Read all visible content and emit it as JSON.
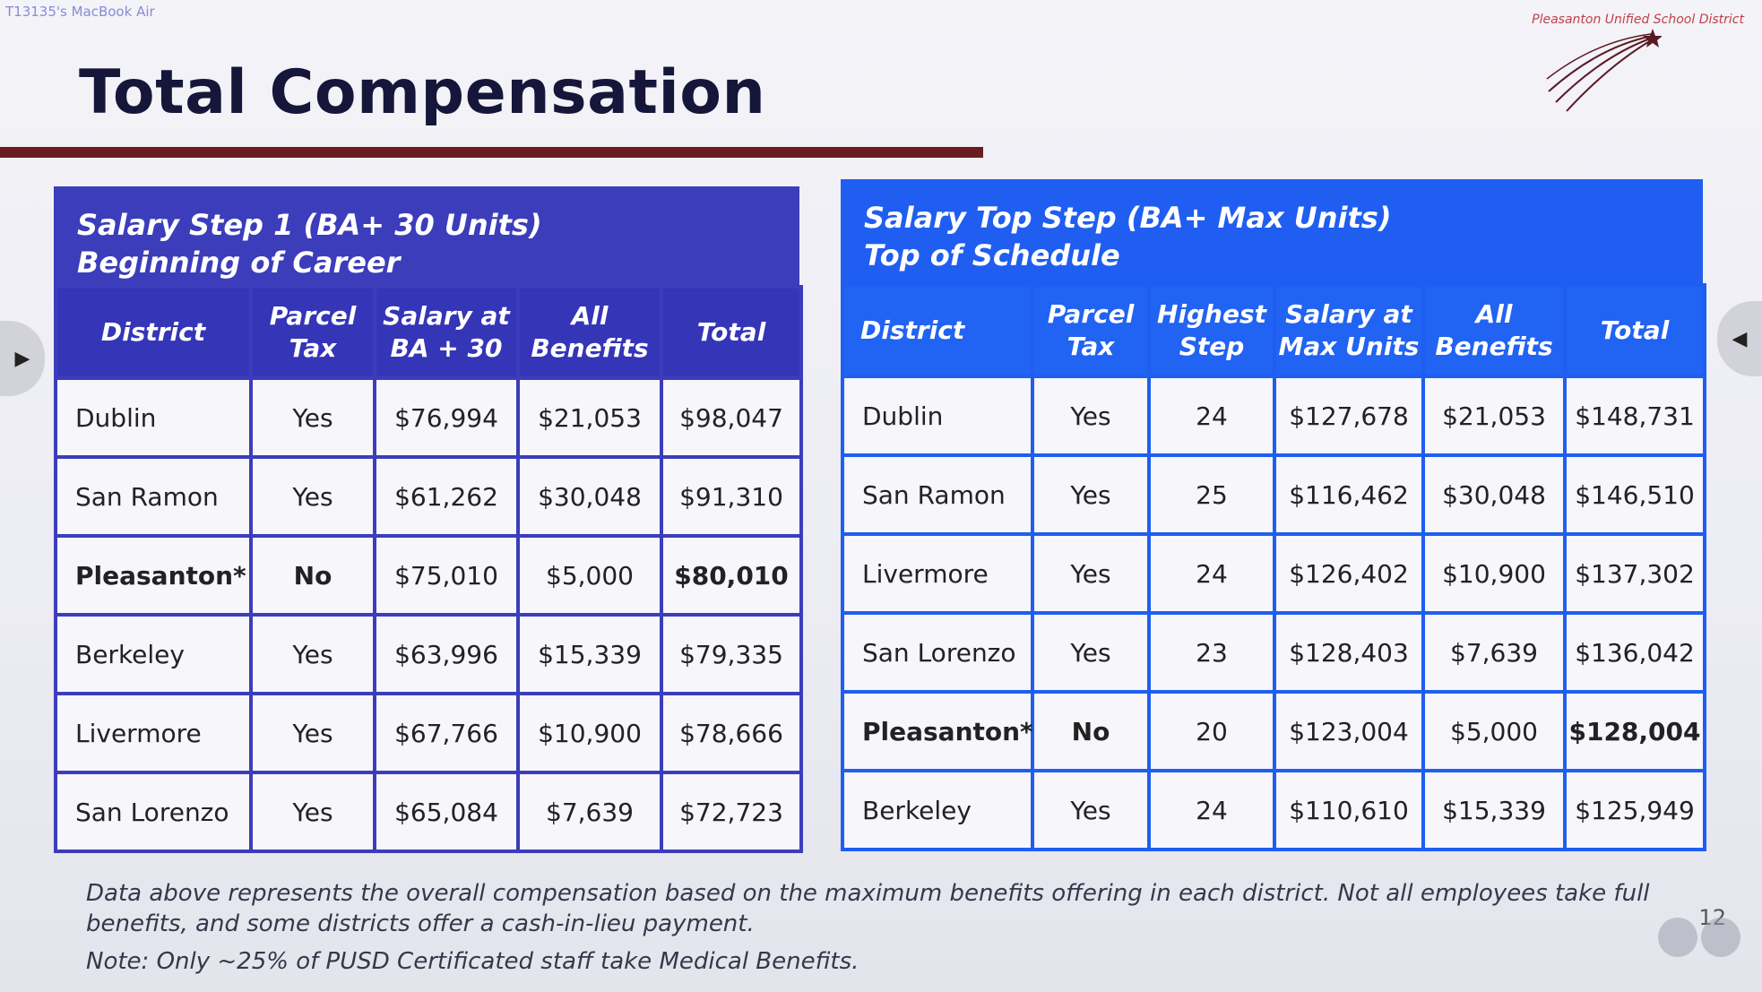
{
  "machine_label": "T13135's MacBook Air",
  "district_name": "Pleasanton Unified School District",
  "title": "Total Compensation",
  "left_panel": {
    "heading_line1": "Salary Step 1  (BA+ 30 Units)",
    "heading_line2": "Beginning of Career",
    "columns": [
      "District",
      "Parcel Tax",
      "Salary at BA + 30",
      "All Benefits",
      "Total"
    ],
    "rows": [
      {
        "district": "Dublin",
        "parcel_tax": "Yes",
        "salary": "$76,994",
        "benefits": "$21,053",
        "total": "$98,047"
      },
      {
        "district": "San Ramon",
        "parcel_tax": "Yes",
        "salary": "$61,262",
        "benefits": "$30,048",
        "total": "$91,310"
      },
      {
        "district": "Pleasanton*",
        "parcel_tax": "No",
        "salary": "$75,010",
        "benefits": "$5,000",
        "total": "$80,010"
      },
      {
        "district": "Berkeley",
        "parcel_tax": "Yes",
        "salary": "$63,996",
        "benefits": "$15,339",
        "total": "$79,335"
      },
      {
        "district": "Livermore",
        "parcel_tax": "Yes",
        "salary": "$67,766",
        "benefits": "$10,900",
        "total": "$78,666"
      },
      {
        "district": "San Lorenzo",
        "parcel_tax": "Yes",
        "salary": "$65,084",
        "benefits": "$7,639",
        "total": "$72,723"
      }
    ]
  },
  "right_panel": {
    "heading_line1": "Salary Top Step  (BA+ Max Units)",
    "heading_line2": "Top of Schedule",
    "columns": [
      "District",
      "Parcel Tax",
      "Highest Step",
      "Salary at Max Units",
      "All Benefits",
      "Total"
    ],
    "rows": [
      {
        "district": "Dublin",
        "parcel_tax": "Yes",
        "step": "24",
        "salary": "$127,678",
        "benefits": "$21,053",
        "total": "$148,731"
      },
      {
        "district": "San Ramon",
        "parcel_tax": "Yes",
        "step": "25",
        "salary": "$116,462",
        "benefits": "$30,048",
        "total": "$146,510"
      },
      {
        "district": "Livermore",
        "parcel_tax": "Yes",
        "step": "24",
        "salary": "$126,402",
        "benefits": "$10,900",
        "total": "$137,302"
      },
      {
        "district": "San Lorenzo",
        "parcel_tax": "Yes",
        "step": "23",
        "salary": "$128,403",
        "benefits": "$7,639",
        "total": "$136,042"
      },
      {
        "district": "Pleasanton*",
        "parcel_tax": "No",
        "step": "20",
        "salary": "$123,004",
        "benefits": "$5,000",
        "total": "$128,004"
      },
      {
        "district": "Berkeley",
        "parcel_tax": "Yes",
        "step": "24",
        "salary": "$110,610",
        "benefits": "$15,339",
        "total": "$125,949"
      }
    ]
  },
  "footnote": "Data above represents the overall compensation based on the maximum benefits offering in each district. Not all employees take full benefits, and some districts offer a cash-in-lieu payment.",
  "note": "Note:  Only ~25% of PUSD Certificated staff take Medical Benefits.",
  "page_number": "12",
  "highlight_district": "Pleasanton*",
  "colors": {
    "left_header": "#3c3dbb",
    "right_header": "#1f5ef0",
    "title_bar": "#6a1d1f",
    "title_text": "#15163a"
  }
}
